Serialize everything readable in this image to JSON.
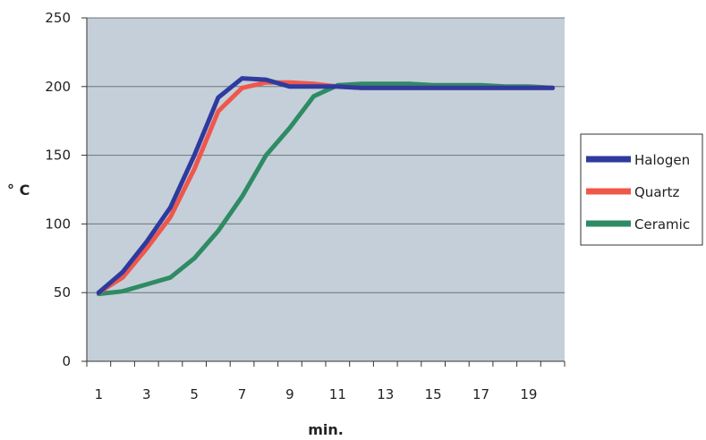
{
  "chart_data": {
    "type": "line",
    "xlabel": "min.",
    "ylabel": "° C",
    "x": [
      1,
      2,
      3,
      4,
      5,
      6,
      7,
      8,
      9,
      10,
      11,
      12,
      13,
      14,
      15,
      16,
      17,
      18,
      19,
      20
    ],
    "xticks": [
      "1",
      "3",
      "5",
      "7",
      "9",
      "11",
      "13",
      "15",
      "17",
      "19"
    ],
    "yticks": [
      "0",
      "50",
      "100",
      "150",
      "200",
      "250"
    ],
    "ylim": [
      0,
      250
    ],
    "xlim": [
      0.5,
      20.5
    ],
    "grid": "horizontal",
    "legend_position": "right",
    "background_color": "#c4cfd9",
    "series": [
      {
        "name": "Halogen",
        "color": "#2e3a9e",
        "values": [
          50,
          65,
          87,
          112,
          150,
          192,
          206,
          205,
          200,
          200,
          200,
          199,
          199,
          199,
          199,
          199,
          199,
          199,
          199,
          199
        ]
      },
      {
        "name": "Quartz",
        "color": "#f0574b",
        "values": [
          50,
          61,
          82,
          105,
          140,
          182,
          199,
          203,
          203,
          202,
          200,
          199,
          199,
          199,
          199,
          199,
          199,
          199,
          199,
          199
        ]
      },
      {
        "name": "Ceramic",
        "color": "#2e8b63",
        "values": [
          49,
          51,
          56,
          61,
          75,
          95,
          120,
          150,
          170,
          193,
          201,
          202,
          202,
          202,
          201,
          201,
          201,
          200,
          200,
          199
        ]
      }
    ]
  }
}
